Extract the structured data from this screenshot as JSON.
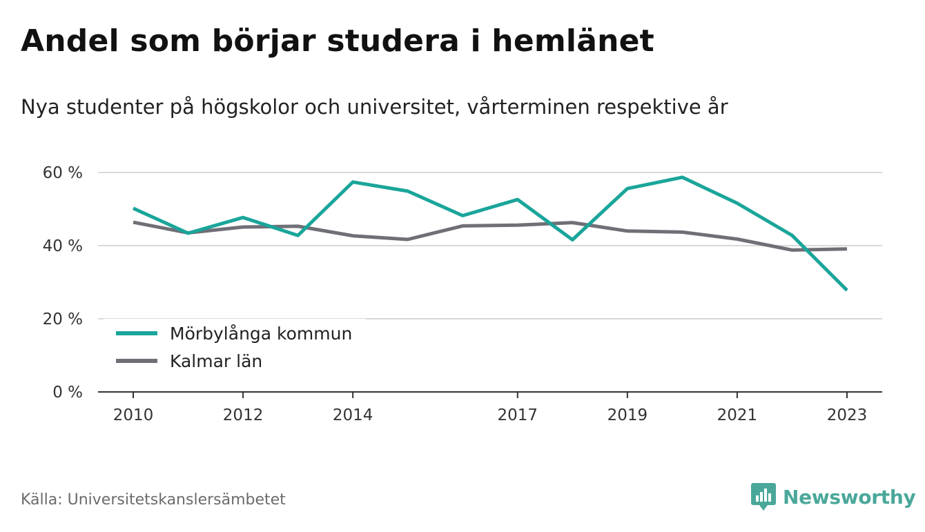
{
  "title": "Andel som börjar studera i hemlänet",
  "subtitle": "Nya studenter på högskolor och universitet, vårterminen respektive år",
  "source": "Källa: Universitetskanslersämbetet",
  "brand": "Newsworthy",
  "chart_data": {
    "type": "line",
    "x": [
      2010,
      2011,
      2012,
      2013,
      2014,
      2015,
      2016,
      2017,
      2018,
      2019,
      2020,
      2021,
      2022,
      2023
    ],
    "x_tick_labels": [
      "2010",
      "2012",
      "2014",
      "2017",
      "2019",
      "2021",
      "2023"
    ],
    "y_tick_labels": [
      "0 %",
      "20 %",
      "40 %",
      "60 %"
    ],
    "y_ticks": [
      0,
      20,
      40,
      60
    ],
    "ylim": [
      0,
      60
    ],
    "xlim": [
      2010,
      2023
    ],
    "grid": true,
    "legend_position": "bottom-left",
    "series": [
      {
        "name": "Mörbylånga kommun",
        "color": "#1aa59a",
        "values": [
          50.2,
          43.4,
          47.7,
          42.8,
          57.4,
          54.9,
          48.2,
          52.6,
          41.6,
          55.6,
          58.7,
          51.6,
          42.8,
          27.8
        ]
      },
      {
        "name": "Kalmar län",
        "color": "#6f6f77",
        "values": [
          46.4,
          43.5,
          45.1,
          45.3,
          42.7,
          41.7,
          45.4,
          45.6,
          46.3,
          44.0,
          43.7,
          41.8,
          38.8,
          39.1
        ]
      }
    ]
  }
}
